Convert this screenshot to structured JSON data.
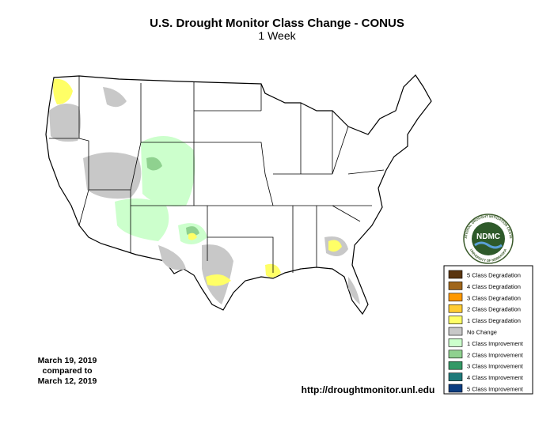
{
  "header": {
    "title": "U.S. Drought Monitor Class Change - CONUS",
    "subtitle": "1 Week"
  },
  "legend": {
    "items": [
      {
        "label": "5 Class Degradation",
        "color": "#5a3510"
      },
      {
        "label": "4 Class Degradation",
        "color": "#a0661b"
      },
      {
        "label": "3 Class Degradation",
        "color": "#ff9900"
      },
      {
        "label": "2 Class Degradation",
        "color": "#ffcc33"
      },
      {
        "label": "1 Class Degradation",
        "color": "#ffff66"
      },
      {
        "label": "No Change",
        "color": "#c8c8c8"
      },
      {
        "label": "1 Class Improvement",
        "color": "#ccffcc"
      },
      {
        "label": "2 Class Improvement",
        "color": "#8fd18f"
      },
      {
        "label": "3 Class Improvement",
        "color": "#339966"
      },
      {
        "label": "4 Class Improvement",
        "color": "#1f7a7a"
      },
      {
        "label": "5 Class Improvement",
        "color": "#0b3d80"
      }
    ]
  },
  "date_note": {
    "lines": [
      "March 19, 2019",
      "compared to",
      "March 12, 2019"
    ]
  },
  "url": "http://droughtmonitor.unl.edu",
  "logo": {
    "text": "NDMC",
    "ring_top": "NATIONAL DROUGHT MITIGATION CENTER",
    "ring_bottom": "UNIVERSITY OF NEBRASKA"
  }
}
